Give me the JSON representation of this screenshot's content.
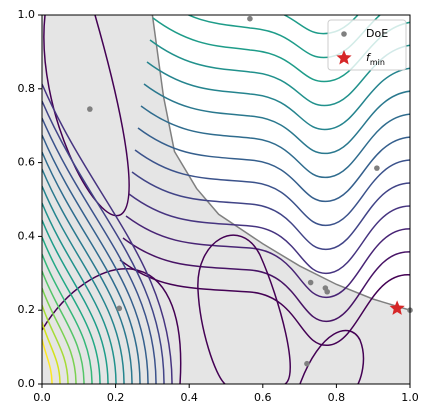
{
  "chart_data": {
    "type": "scatter",
    "xlim": [
      0,
      1
    ],
    "ylim": [
      0,
      1
    ],
    "xticks": [
      {
        "value": 0,
        "label": "0.0"
      },
      {
        "value": 0.2,
        "label": "0.2"
      },
      {
        "value": 0.4,
        "label": "0.4"
      },
      {
        "value": 0.6,
        "label": "0.6"
      },
      {
        "value": 0.8,
        "label": "0.8"
      },
      {
        "value": 1,
        "label": "1.0"
      }
    ],
    "yticks": [
      {
        "value": 0,
        "label": "0.0"
      },
      {
        "value": 0.2,
        "label": "0.2"
      },
      {
        "value": 0.4,
        "label": "0.4"
      },
      {
        "value": 0.6,
        "label": "0.6"
      },
      {
        "value": 0.8,
        "label": "0.8"
      },
      {
        "value": 1,
        "label": "1.0"
      }
    ],
    "constraint": {
      "color": "#808080",
      "fill": "#e5e5e5",
      "x": [
        0.3,
        0.33,
        0.36,
        0.42,
        0.48,
        0.54,
        0.6,
        0.7,
        0.8,
        0.9,
        1.0
      ],
      "y": [
        1.0,
        0.78,
        0.63,
        0.53,
        0.46,
        0.42,
        0.38,
        0.32,
        0.27,
        0.23,
        0.2
      ]
    },
    "series": [
      {
        "name": "DoE",
        "color": "#808080",
        "marker": "circle",
        "x": [
          0.13,
          0.21,
          0.565,
          0.73,
          0.77,
          0.775,
          0.91,
          0.72,
          1.0
        ],
        "y": [
          0.745,
          0.205,
          0.99,
          0.275,
          0.26,
          0.25,
          0.585,
          0.055,
          0.2
        ]
      },
      {
        "name": "f",
        "subscript": "min",
        "color": "#d62728",
        "marker": "star",
        "x": [
          0.965
        ],
        "y": [
          0.205
        ]
      }
    ],
    "legend": "upper right"
  }
}
